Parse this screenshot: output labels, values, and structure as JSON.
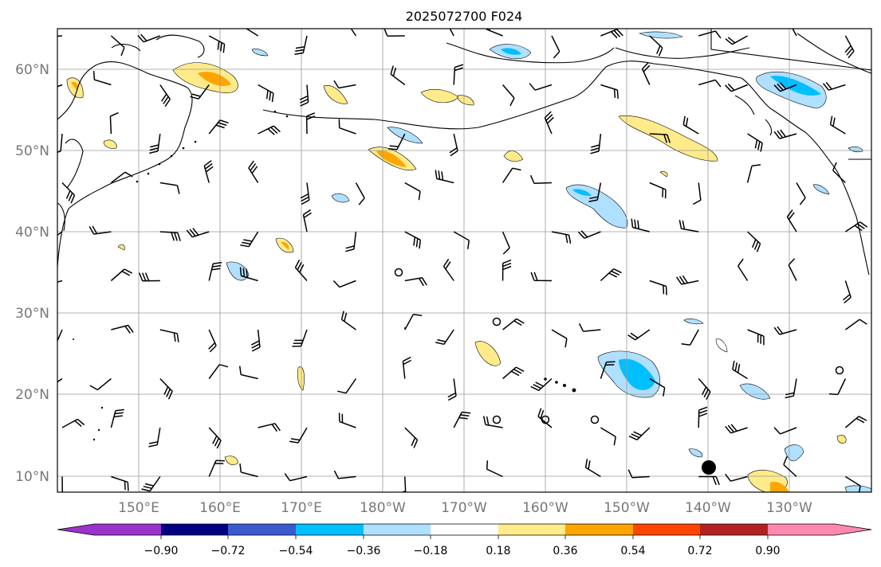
{
  "title": "2025072700 F024",
  "lat_ticks": [
    "60°N",
    "50°N",
    "40°N",
    "30°N",
    "20°N",
    "10°N"
  ],
  "lon_ticks": [
    "150°E",
    "160°E",
    "170°E",
    "180°W",
    "170°W",
    "160°W",
    "150°W",
    "140°W",
    "130°W"
  ],
  "colorbar": {
    "tick_labels": [
      "−0.90",
      "−0.72",
      "−0.54",
      "−0.36",
      "−0.18",
      "0.18",
      "0.36",
      "0.54",
      "0.72",
      "0.90"
    ],
    "colors": [
      "#9933cc",
      "#000080",
      "#3a5acd",
      "#00bfff",
      "#b0e0ff",
      "#ffffff",
      "#ffeb8a",
      "#ffa500",
      "#ff4500",
      "#b22222",
      "#ff88b0"
    ]
  },
  "fill_colors": {
    "neg_light": "#b0e0ff",
    "neg_mid": "#00bfff",
    "pos_light": "#ffeb8a",
    "pos_mid": "#ffa500",
    "pos_strong": "#ff4500"
  },
  "marker_color": "#000000"
}
